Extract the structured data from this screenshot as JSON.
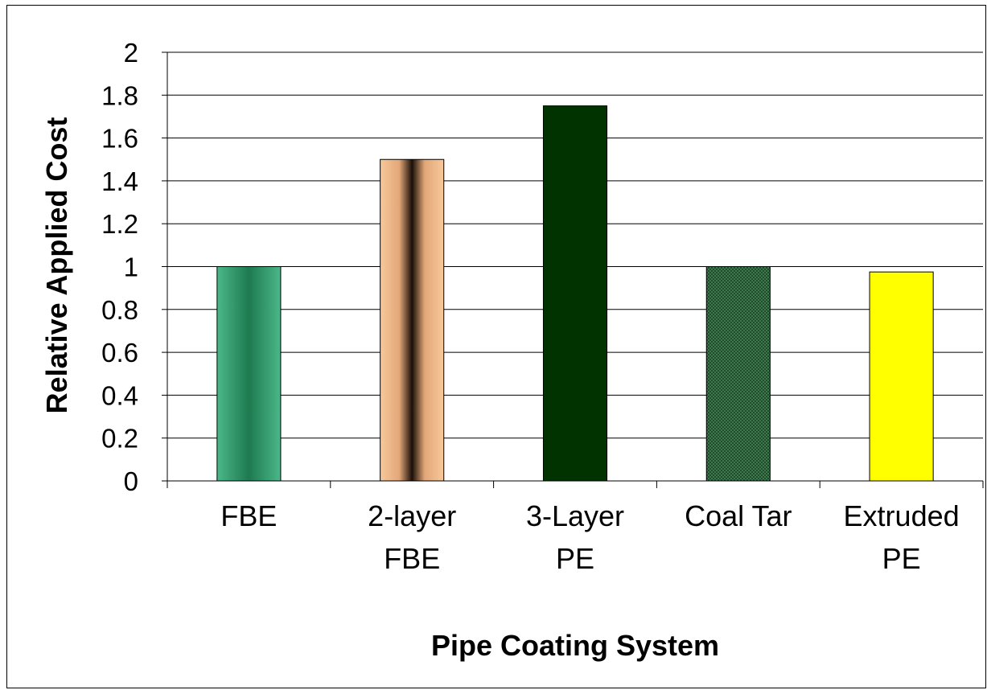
{
  "chart_data": {
    "type": "bar",
    "title": "",
    "xlabel": "Pipe Coating System",
    "ylabel": "Relative Applied Cost",
    "categories": [
      [
        "FBE"
      ],
      [
        "2-layer",
        "FBE"
      ],
      [
        "3-Layer",
        "PE"
      ],
      [
        "Coal Tar"
      ],
      [
        "Extruded",
        "PE"
      ]
    ],
    "values": [
      1.0,
      1.5,
      1.75,
      1.0,
      0.975
    ],
    "ylim": [
      0,
      2
    ],
    "yticks": [
      "0",
      "0.2",
      "0.4",
      "0.6",
      "0.8",
      "1",
      "1.2",
      "1.4",
      "1.6",
      "1.8",
      "2"
    ],
    "grid": true,
    "legend": "none",
    "bar_styles": [
      "teal-gradient",
      "tan-cylinder",
      "dark-green",
      "green-hatch",
      "yellow"
    ],
    "colors": [
      "#2e9a6e",
      "#f5c094",
      "#003300",
      "#2f5f3a",
      "#ffff00"
    ]
  }
}
